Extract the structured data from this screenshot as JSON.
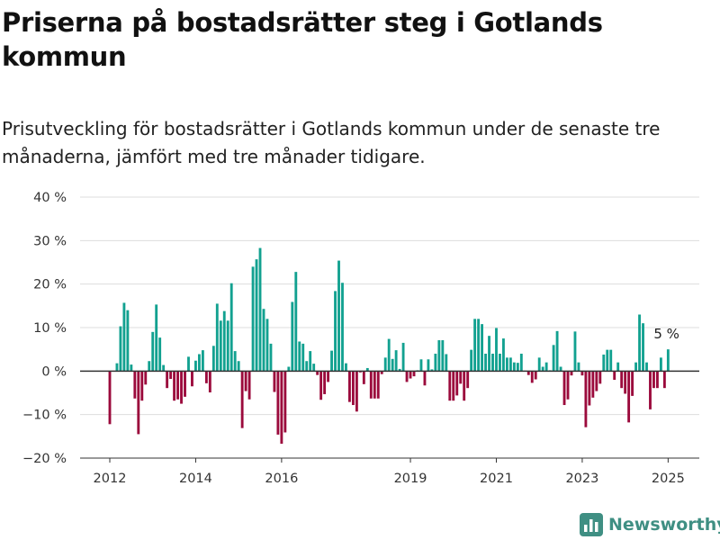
{
  "header": {
    "title": "Priserna på bostadsrätter steg i Gotlands kommun",
    "subtitle": "Prisutveckling för bostadsrätter i Gotlands kommun under de senaste tre månaderna, jämfört med tre månader tidigare."
  },
  "brand": {
    "name": "Newsworthy",
    "icon": "bar-chart-logo-icon"
  },
  "colors": {
    "positive": "#12a190",
    "negative": "#9b0a3c",
    "grid": "#dddddd",
    "axis": "#333333",
    "brand": "#3f8f83"
  },
  "chart_data": {
    "type": "bar",
    "title": "",
    "xlabel": "",
    "ylabel": "",
    "ylim": [
      -20,
      40
    ],
    "y_ticks": [
      -20,
      -10,
      0,
      10,
      20,
      30,
      40
    ],
    "y_tick_labels": [
      "−20 %",
      "−10 %",
      "0 %",
      "10 %",
      "20 %",
      "30 %",
      "40 %"
    ],
    "x_ticks": [
      2012,
      2014,
      2016,
      2019,
      2021,
      2023,
      2025
    ],
    "x_tick_labels": [
      "2012",
      "2014",
      "2016",
      "2019",
      "2021",
      "2023",
      "2025"
    ],
    "start": "2012-01",
    "frequency": "monthly",
    "grid": "horizontal",
    "annotation": {
      "text": "5 %",
      "at": "last"
    },
    "values": [
      -12.2,
      0,
      1.8,
      10.3,
      15.7,
      14.0,
      1.5,
      -6.3,
      -14.5,
      -6.8,
      -3.1,
      2.3,
      9.0,
      15.3,
      7.7,
      1.4,
      -3.9,
      -1.8,
      -6.8,
      -6.5,
      -7.5,
      -5.9,
      3.3,
      -3.5,
      2.4,
      3.9,
      4.8,
      -2.8,
      -4.9,
      5.8,
      15.5,
      11.6,
      13.8,
      11.6,
      20.2,
      4.6,
      2.3,
      -13.1,
      -4.6,
      -6.5,
      24.0,
      25.7,
      28.3,
      14.3,
      12.0,
      6.3,
      -4.8,
      -14.6,
      -16.7,
      -14.1,
      1.0,
      15.9,
      22.8,
      6.8,
      6.3,
      2.3,
      4.6,
      1.7,
      -0.9,
      -6.6,
      -5.3,
      -2.5,
      4.7,
      18.4,
      25.4,
      20.3,
      1.8,
      -7.1,
      -7.8,
      -9.3,
      -0.3,
      -3.0,
      0.7,
      -6.3,
      -6.3,
      -6.3,
      -0.7,
      3.1,
      7.4,
      2.8,
      4.8,
      0.5,
      6.5,
      -2.5,
      -1.7,
      -1.2,
      0.2,
      2.7,
      -3.3,
      2.7,
      0.4,
      4.0,
      7.1,
      7.1,
      3.9,
      -6.8,
      -6.8,
      -5.6,
      -2.9,
      -6.8,
      -3.9,
      4.9,
      12.0,
      12.0,
      10.8,
      4.0,
      8.1,
      4.0,
      9.9,
      4.0,
      7.5,
      3.1,
      3.1,
      2.0,
      1.9,
      4.0,
      0.1,
      -0.9,
      -2.7,
      -1.9,
      3.1,
      1.0,
      2.0,
      0.2,
      6.0,
      9.2,
      1.0,
      -7.8,
      -6.5,
      -1.0,
      9.1,
      2.0,
      -1.0,
      -12.9,
      -7.9,
      -6.1,
      -4.6,
      -2.9,
      3.8,
      4.9,
      4.9,
      -2.0,
      2.0,
      -3.9,
      -5.2,
      -11.8,
      -5.7,
      2.0,
      13.0,
      11.0,
      2.0,
      -8.8,
      -3.9,
      -3.9,
      3.1,
      -3.9,
      5.0
    ]
  }
}
